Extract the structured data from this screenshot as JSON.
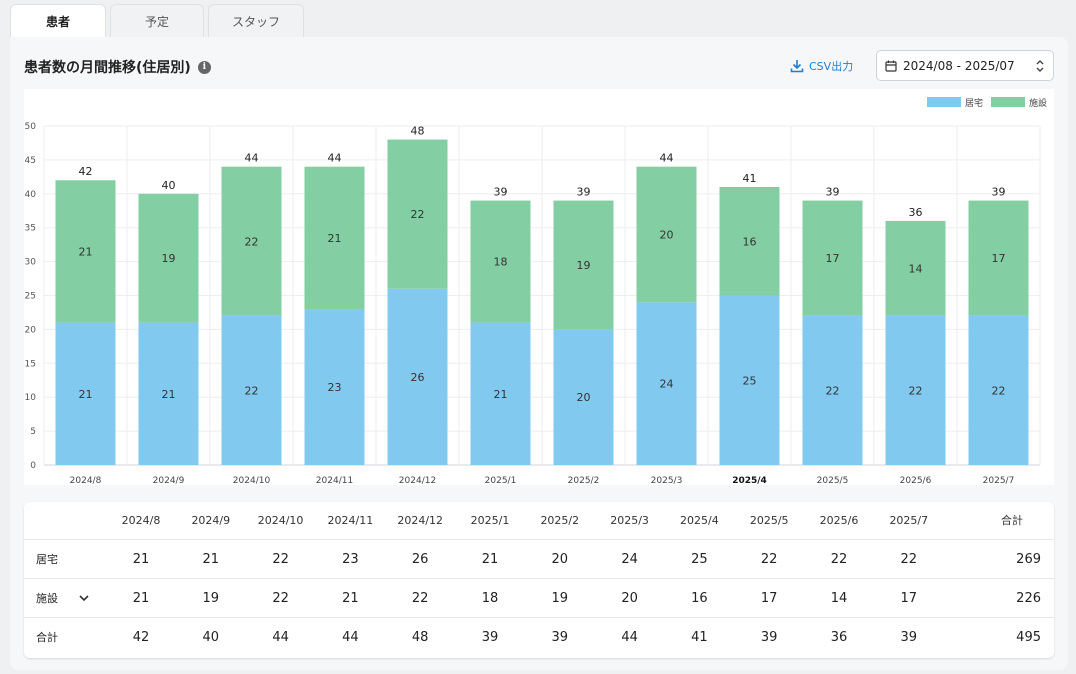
{
  "tabs": [
    {
      "label": "患者"
    },
    {
      "label": "予定"
    },
    {
      "label": "スタッフ"
    }
  ],
  "header": {
    "title": "患者数の月間推移(住居別)",
    "info_icon": "i",
    "csv_label": "CSV出力",
    "date_range": "2024/08 - 2025/07"
  },
  "colors": {
    "home": "#82c9f0",
    "facility": "#83cea3",
    "accent": "#1d7fd0"
  },
  "chart_data": {
    "type": "bar",
    "stacked": true,
    "categories": [
      "2024/8",
      "2024/9",
      "2024/10",
      "2024/11",
      "2024/12",
      "2025/1",
      "2025/2",
      "2025/3",
      "2025/4",
      "2025/5",
      "2025/6",
      "2025/7"
    ],
    "highlight_category": "2025/4",
    "series": [
      {
        "name": "居宅",
        "values": [
          21,
          21,
          22,
          23,
          26,
          21,
          20,
          24,
          25,
          22,
          22,
          22
        ]
      },
      {
        "name": "施設",
        "values": [
          21,
          19,
          22,
          21,
          22,
          18,
          19,
          20,
          16,
          17,
          14,
          17
        ]
      }
    ],
    "totals": [
      42,
      40,
      44,
      44,
      48,
      39,
      39,
      44,
      41,
      39,
      36,
      39
    ],
    "ylim": [
      0,
      50
    ],
    "yticks": [
      0,
      5,
      10,
      15,
      20,
      25,
      30,
      35,
      40,
      45,
      50
    ],
    "legend_position": "top-right",
    "title": "",
    "xlabel": "",
    "ylabel": ""
  },
  "table": {
    "headers": [
      "2024/8",
      "2024/9",
      "2024/10",
      "2024/11",
      "2024/12",
      "2025/1",
      "2025/2",
      "2025/3",
      "2025/4",
      "2025/5",
      "2025/6",
      "2025/7"
    ],
    "total_header": "合計",
    "rows": [
      {
        "label": "居宅",
        "values": [
          "21",
          "21",
          "22",
          "23",
          "26",
          "21",
          "20",
          "24",
          "25",
          "22",
          "22",
          "22"
        ],
        "total": "269"
      },
      {
        "label": "施設",
        "values": [
          "21",
          "19",
          "22",
          "21",
          "22",
          "18",
          "19",
          "20",
          "16",
          "17",
          "14",
          "17"
        ],
        "total": "226"
      },
      {
        "label": "合計",
        "values": [
          "42",
          "40",
          "44",
          "44",
          "48",
          "39",
          "39",
          "44",
          "41",
          "39",
          "36",
          "39"
        ],
        "total": "495"
      }
    ]
  }
}
